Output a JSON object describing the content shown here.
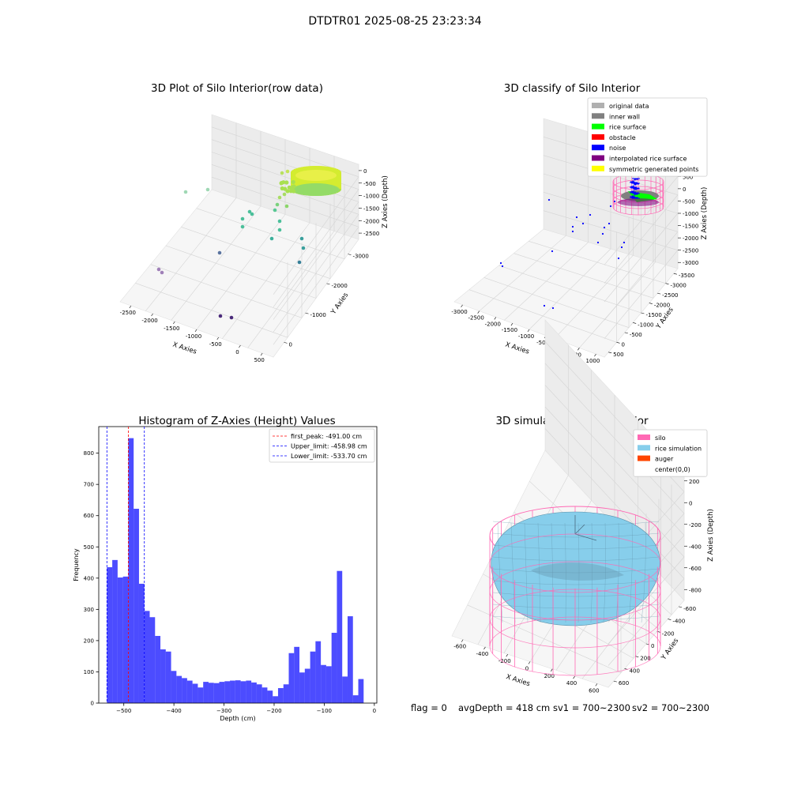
{
  "suptitle": "DTDTR01 2025-08-25 23:23:34",
  "footer": {
    "flag": "flag = 0",
    "avg_depth": "avgDepth = 418 cm",
    "sv1": "sv1 = 700~2300",
    "sv2": "sv2 = 700~2300"
  },
  "colors": {
    "silo": "#ff69b4",
    "rice": "#87ceeb",
    "auger": "#ff4500",
    "hist": "#0000ff",
    "gray_light": "#b0b0b0",
    "gray_dark": "#808080",
    "green": "#00ff00",
    "red": "#ff0000",
    "purple": "#800080",
    "yellow": "#ffff00"
  },
  "chart_data": [
    {
      "id": "raw",
      "type": "scatter",
      "projection": "3d",
      "title": "3D Plot of Silo Interior(row data)",
      "xlabel": "X Axies",
      "ylabel": "Y Axies",
      "zlabel": "Z Axies (Depth)",
      "x_ticks": [
        "-2500",
        "-2000",
        "-1500",
        "-1000",
        "-500",
        "0",
        "500"
      ],
      "y_ticks": [
        "0",
        "-1000",
        "-2000",
        "-3000"
      ],
      "z_ticks": [
        "0",
        "-500",
        "-1000",
        "-1500",
        "-2000",
        "-2500"
      ],
      "grid": true
    },
    {
      "id": "classify",
      "type": "scatter",
      "projection": "3d",
      "title": "3D classify of Silo Interior",
      "xlabel": "X Axies",
      "ylabel": "Y Axies",
      "zlabel": "Z Axies (Depth)",
      "x_ticks": [
        "-3000",
        "-2500",
        "-2000",
        "-1500",
        "-1000",
        "-500",
        "0",
        "500",
        "1000"
      ],
      "y_ticks": [
        "500",
        "0",
        "-500",
        "-1000",
        "-1500",
        "-2000",
        "-2500",
        "-3000",
        "-3500"
      ],
      "z_ticks": [
        "1000",
        "500",
        "0",
        "-500",
        "-1000",
        "-1500",
        "-2000",
        "-2500",
        "-3000"
      ],
      "legend": {
        "placement": "upper-right",
        "entries": [
          {
            "label": "original data",
            "color": "#b0b0b0"
          },
          {
            "label": "inner wall",
            "color": "#808080"
          },
          {
            "label": "rice surface",
            "color": "#00ff00"
          },
          {
            "label": "obstacle",
            "color": "#ff0000"
          },
          {
            "label": "noise",
            "color": "#0000ff"
          },
          {
            "label": "interpolated rice surface",
            "color": "#800080"
          },
          {
            "label": "symmetric generated points",
            "color": "#ffff00"
          }
        ]
      },
      "grid": true
    },
    {
      "id": "hist",
      "type": "bar",
      "title": "Histogram of Z-Axies (Height) Values",
      "xlabel": "Depth (cm)",
      "ylabel": "Frequency",
      "xlim": [
        -550,
        5
      ],
      "ylim": [
        0,
        885
      ],
      "x_ticks": [
        -500,
        -400,
        -300,
        -200,
        -100,
        0
      ],
      "y_ticks": [
        0,
        100,
        200,
        300,
        400,
        500,
        600,
        700,
        800
      ],
      "bin_start": -533.7,
      "bin_width": 10.674,
      "values": [
        435,
        458,
        402,
        405,
        848,
        622,
        382,
        295,
        275,
        215,
        172,
        165,
        103,
        87,
        80,
        72,
        62,
        50,
        68,
        65,
        64,
        68,
        70,
        72,
        73,
        70,
        72,
        66,
        60,
        50,
        40,
        22,
        48,
        60,
        160,
        180,
        98,
        110,
        165,
        198,
        122,
        118,
        225,
        423,
        85,
        278,
        25,
        77
      ],
      "vlines": [
        {
          "label": "first_peak: -491.00 cm",
          "value": -491.0,
          "color": "#ff0000"
        },
        {
          "label": "Upper_limit: -458.98 cm",
          "value": -458.98,
          "color": "#0000ff"
        },
        {
          "label": "Lower_limit: -533.70 cm",
          "value": -533.7,
          "color": "#0000ff"
        }
      ],
      "legend_placement": "upper-right",
      "grid": false
    },
    {
      "id": "sim",
      "type": "surface",
      "projection": "3d",
      "title": "3D simulation of Silo Interior",
      "xlabel": "X Axies",
      "ylabel": "Y Axies",
      "zlabel": "Z Axies (Depth)",
      "x_ticks": [
        "-600",
        "-400",
        "-200",
        "0",
        "200",
        "400",
        "600"
      ],
      "y_ticks": [
        "600",
        "400",
        "200",
        "0",
        "-200",
        "-400",
        "-600"
      ],
      "z_ticks": [
        "200",
        "0",
        "-200",
        "-400",
        "-600",
        "-800"
      ],
      "legend": {
        "placement": "upper-right",
        "entries": [
          {
            "label": "silo",
            "color": "#ff69b4"
          },
          {
            "label": "rice simulation",
            "color": "#87ceeb"
          },
          {
            "label": "auger",
            "color": "#ff4500"
          },
          {
            "label": "center(0,0)",
            "color": "#ffffff"
          }
        ]
      },
      "grid": true
    }
  ]
}
